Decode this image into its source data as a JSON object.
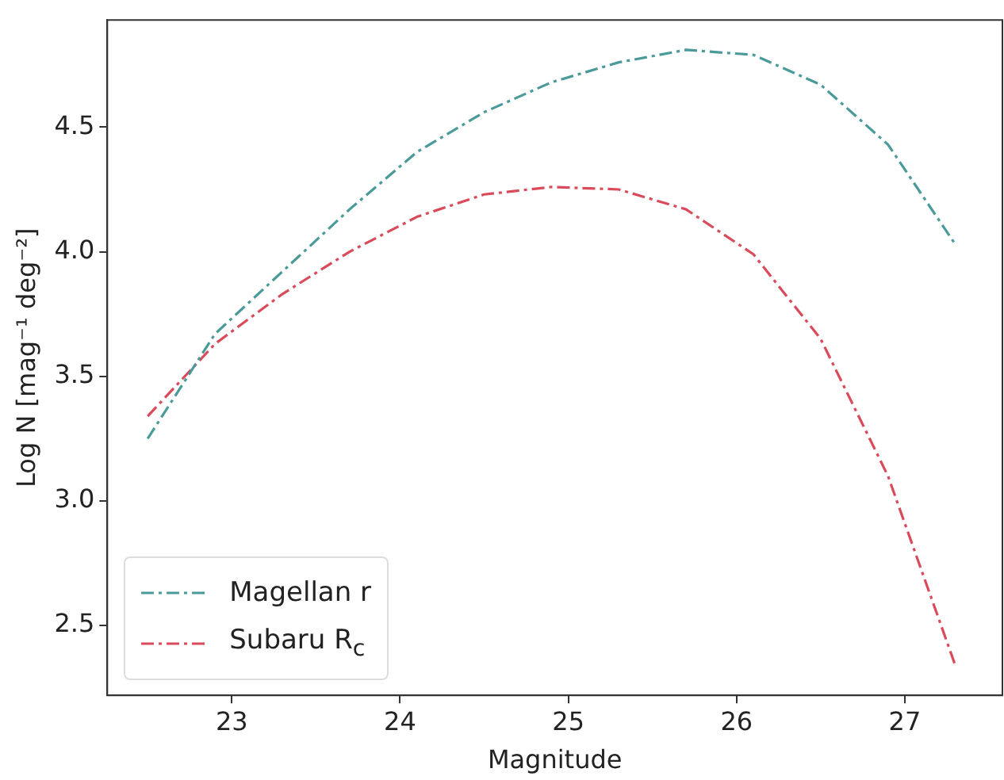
{
  "chart_data": {
    "type": "line",
    "xlabel": "Magnitude",
    "ylabel": "Log N [mag⁻¹ deg⁻²]",
    "x": [
      22.5,
      22.9,
      23.3,
      23.7,
      24.1,
      24.5,
      24.9,
      25.3,
      25.7,
      26.1,
      26.5,
      26.9,
      27.3
    ],
    "series": [
      {
        "name": "Magellan r",
        "color": "#4a9a9a",
        "values": [
          3.25,
          3.67,
          3.92,
          4.17,
          4.4,
          4.56,
          4.68,
          4.76,
          4.81,
          4.79,
          4.67,
          4.43,
          4.03
        ]
      },
      {
        "name": "Subaru R$_{c}$",
        "color": "#d94a5a",
        "values": [
          3.34,
          3.63,
          3.83,
          4.0,
          4.14,
          4.23,
          4.26,
          4.25,
          4.17,
          3.99,
          3.65,
          3.1,
          2.34
        ]
      }
    ],
    "xlim": [
      22.26,
      27.58
    ],
    "xticks": [
      23,
      24,
      25,
      26,
      27
    ],
    "ylim": [
      2.22,
      4.93
    ],
    "yticks": [
      {
        "value": 2.5,
        "label": "2.5"
      },
      {
        "value": 3.0,
        "label": "3.0"
      },
      {
        "value": 3.5,
        "label": "3.5"
      },
      {
        "value": 4.0,
        "label": "4.0"
      },
      {
        "value": 4.5,
        "label": "4.5"
      }
    ],
    "grid": false,
    "legend": "bottom left",
    "marker": "none",
    "line_style": "dashed"
  }
}
